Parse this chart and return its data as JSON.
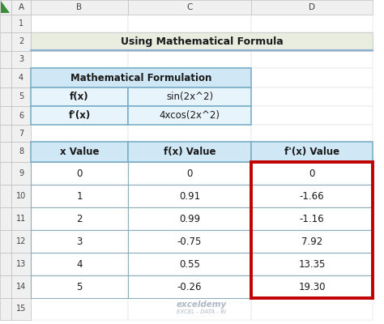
{
  "title": "Using Mathematical Formula",
  "title_bg": "#e8ede0",
  "title_border_bottom": "#8bafd4",
  "formula_header": "Mathematical Formulation",
  "formula_header_bg": "#d0e8f5",
  "formula_rows": [
    [
      "f(x)",
      "sin(2x^2)"
    ],
    [
      "f'(x)",
      "4xcos(2x^2)"
    ]
  ],
  "formula_row_bg": "#e8f4fb",
  "data_headers": [
    "x Value",
    "f(x) Value",
    "f'(x) Value"
  ],
  "data_rows": [
    [
      "0",
      "0",
      "0"
    ],
    [
      "1",
      "0.91",
      "-1.66"
    ],
    [
      "2",
      "0.99",
      "-1.16"
    ],
    [
      "3",
      "-0.75",
      "7.92"
    ],
    [
      "4",
      "0.55",
      "13.35"
    ],
    [
      "5",
      "-0.26",
      "19.30"
    ]
  ],
  "col_header_bg": "#d0e8f5",
  "highlight_col_border": "#c00000",
  "excel_header_bg": "#f0f0f0",
  "excel_header_text": "#444444",
  "col_letters": [
    "A",
    "B",
    "C",
    "D"
  ],
  "row_numbers": [
    "1",
    "2",
    "3",
    "4",
    "5",
    "6",
    "7",
    "8",
    "9",
    "10",
    "11",
    "12",
    "13",
    "14",
    "15"
  ],
  "watermark": "exceldemy",
  "watermark_sub": "EXCEL - DATA - BI",
  "watermark_color": "#b0b8c8"
}
